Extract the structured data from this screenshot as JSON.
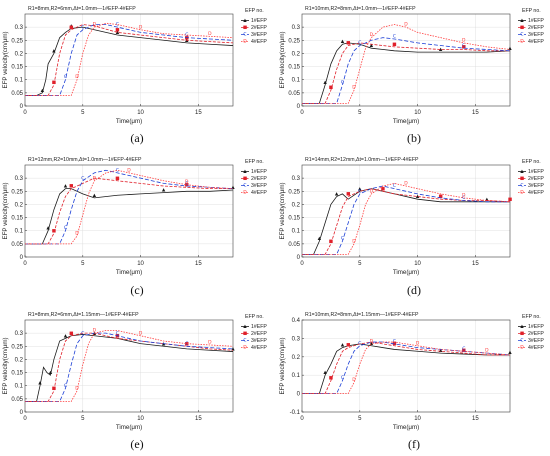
{
  "figure": {
    "legend_header": "EFP no."
  },
  "series_style": [
    {
      "name": "1#EFP",
      "color": "#1a1a1a",
      "dash": "",
      "marker": "▲"
    },
    {
      "name": "2#EFP",
      "color": "#e0202a",
      "dash": "3,1.5",
      "marker": "■"
    },
    {
      "name": "3#EFP",
      "color": "#1c3fd6",
      "dash": "4,2",
      "marker": "C"
    },
    {
      "name": "4#EFP",
      "color": "#ff3b3b",
      "dash": "1.5,1.2",
      "marker": "D"
    }
  ],
  "chart_data": [
    {
      "id": "a",
      "caption": "(a)",
      "type": "line",
      "title": "R1=8mm,R2=6mm,Δt=1.0mm—1#EFP-4#EFP",
      "xlabel": "Time(μm)",
      "ylabel": "EFP velocity(cm/μm)",
      "xlim": [
        0,
        18
      ],
      "ylim": [
        0,
        0.35
      ],
      "xticks": [
        0,
        5,
        10,
        15
      ],
      "yticks": [
        0,
        0.05,
        0.1,
        0.15,
        0.2,
        0.25,
        0.3
      ],
      "legend_position": "right",
      "grid": true,
      "series": [
        {
          "name": "1#EFP",
          "x": [
            0,
            1,
            1.5,
            1.8,
            2,
            2.5,
            3,
            3.5,
            4,
            5,
            6,
            8,
            10,
            12,
            14,
            16,
            18
          ],
          "y": [
            0.04,
            0.04,
            0.05,
            0.1,
            0.16,
            0.2,
            0.26,
            0.28,
            0.295,
            0.3,
            0.29,
            0.27,
            0.26,
            0.25,
            0.24,
            0.235,
            0.23
          ]
        },
        {
          "name": "2#EFP",
          "x": [
            0,
            2,
            2.5,
            3,
            3.5,
            4,
            5,
            6,
            8,
            10,
            12,
            14,
            16,
            18
          ],
          "y": [
            0.04,
            0.04,
            0.08,
            0.2,
            0.27,
            0.29,
            0.31,
            0.305,
            0.28,
            0.27,
            0.26,
            0.25,
            0.245,
            0.24
          ]
        },
        {
          "name": "3#EFP",
          "x": [
            0,
            3,
            3.5,
            4,
            4.5,
            5,
            6,
            7,
            8,
            10,
            12,
            14,
            16,
            18
          ],
          "y": [
            0.04,
            0.04,
            0.1,
            0.2,
            0.27,
            0.29,
            0.31,
            0.31,
            0.3,
            0.28,
            0.27,
            0.26,
            0.255,
            0.25
          ]
        },
        {
          "name": "4#EFP",
          "x": [
            0,
            4,
            4.5,
            5,
            5.5,
            6,
            7,
            8,
            10,
            12,
            14,
            16,
            18
          ],
          "y": [
            0.04,
            0.04,
            0.1,
            0.2,
            0.27,
            0.3,
            0.315,
            0.31,
            0.29,
            0.275,
            0.27,
            0.265,
            0.26
          ]
        }
      ]
    },
    {
      "id": "b",
      "caption": "(b)",
      "type": "line",
      "title": "R1=10mm,R2=8mm,Δt=1.0mm—1#EFP-4#EFP",
      "xlabel": "Time(μm)",
      "ylabel": "EFP velocity(cm/μm)",
      "xlim": [
        0,
        18
      ],
      "ylim": [
        0,
        0.35
      ],
      "xticks": [
        0,
        5,
        10,
        15
      ],
      "yticks": [
        0,
        0.05,
        0.1,
        0.15,
        0.2,
        0.25,
        0.3
      ],
      "legend_position": "right",
      "grid": true,
      "series": [
        {
          "name": "1#EFP",
          "x": [
            0,
            1.5,
            2,
            2.5,
            3,
            3.5,
            4,
            5,
            6,
            8,
            10,
            12,
            14,
            16,
            18
          ],
          "y": [
            0.01,
            0.01,
            0.08,
            0.16,
            0.21,
            0.235,
            0.24,
            0.235,
            0.22,
            0.21,
            0.205,
            0.205,
            0.205,
            0.205,
            0.21
          ]
        },
        {
          "name": "2#EFP",
          "x": [
            0,
            2,
            2.5,
            3,
            3.5,
            4,
            5,
            6,
            8,
            10,
            12,
            14,
            16,
            18
          ],
          "y": [
            0.01,
            0.01,
            0.06,
            0.14,
            0.2,
            0.23,
            0.24,
            0.235,
            0.225,
            0.22,
            0.215,
            0.215,
            0.21,
            0.21
          ]
        },
        {
          "name": "3#EFP",
          "x": [
            0,
            3,
            3.5,
            4,
            4.5,
            5,
            6,
            7,
            8,
            10,
            12,
            14,
            16,
            18
          ],
          "y": [
            0.01,
            0.01,
            0.08,
            0.16,
            0.21,
            0.23,
            0.25,
            0.26,
            0.255,
            0.24,
            0.23,
            0.22,
            0.215,
            0.21
          ]
        },
        {
          "name": "4#EFP",
          "x": [
            0,
            4,
            4.5,
            5,
            5.5,
            6,
            7,
            8,
            9,
            10,
            12,
            14,
            16,
            18
          ],
          "y": [
            0.01,
            0.01,
            0.06,
            0.14,
            0.22,
            0.26,
            0.3,
            0.31,
            0.3,
            0.28,
            0.26,
            0.24,
            0.225,
            0.215
          ]
        }
      ]
    },
    {
      "id": "c",
      "caption": "(c)",
      "type": "line",
      "title": "R1=12mm,R2=10mm,Δt=1.0mm—1#EFP-4#EFP",
      "xlabel": "Time(μm)",
      "ylabel": "EFP velocity(cm/μm)",
      "xlim": [
        0,
        18
      ],
      "ylim": [
        0,
        0.35
      ],
      "xticks": [
        0,
        5,
        10,
        15
      ],
      "yticks": [
        0,
        0.05,
        0.1,
        0.15,
        0.2,
        0.25,
        0.3
      ],
      "legend_position": "right",
      "grid": true,
      "series": [
        {
          "name": "1#EFP",
          "x": [
            0,
            1.5,
            2,
            2.5,
            3,
            3.5,
            4,
            5,
            6,
            8,
            10,
            12,
            14,
            16,
            18
          ],
          "y": [
            0.05,
            0.05,
            0.1,
            0.18,
            0.24,
            0.26,
            0.26,
            0.24,
            0.225,
            0.235,
            0.24,
            0.245,
            0.25,
            0.25,
            0.255
          ]
        },
        {
          "name": "2#EFP",
          "x": [
            0,
            2,
            2.5,
            3,
            3.5,
            4,
            5,
            6,
            8,
            10,
            12,
            14,
            16,
            18
          ],
          "y": [
            0.05,
            0.05,
            0.09,
            0.17,
            0.23,
            0.26,
            0.28,
            0.3,
            0.29,
            0.28,
            0.27,
            0.265,
            0.26,
            0.26
          ]
        },
        {
          "name": "3#EFP",
          "x": [
            0,
            3,
            3.5,
            4,
            4.5,
            5,
            6,
            7,
            8,
            10,
            12,
            14,
            16,
            18
          ],
          "y": [
            0.05,
            0.05,
            0.1,
            0.18,
            0.25,
            0.29,
            0.32,
            0.33,
            0.32,
            0.3,
            0.28,
            0.27,
            0.265,
            0.26
          ]
        },
        {
          "name": "4#EFP",
          "x": [
            0,
            4,
            4.5,
            5,
            5.5,
            6,
            7,
            8,
            9,
            10,
            12,
            14,
            16,
            18
          ],
          "y": [
            0.05,
            0.05,
            0.08,
            0.16,
            0.24,
            0.29,
            0.32,
            0.33,
            0.32,
            0.31,
            0.29,
            0.275,
            0.265,
            0.26
          ]
        }
      ]
    },
    {
      "id": "d",
      "caption": "(d)",
      "type": "line",
      "title": "R1=14mm,R2=12mm,Δt=1.0mm—1#EFP-4#EFP",
      "xlabel": "Time(μm)",
      "ylabel": "EFP velocity(cm/μm)",
      "xlim": [
        0,
        18
      ],
      "ylim": [
        0,
        0.35
      ],
      "xticks": [
        0,
        5,
        10,
        15
      ],
      "yticks": [
        0,
        0.05,
        0.1,
        0.15,
        0.2,
        0.25,
        0.3
      ],
      "legend_position": "right",
      "grid": true,
      "series": [
        {
          "name": "1#EFP",
          "x": [
            0,
            1,
            1.5,
            2,
            2.5,
            3,
            3.5,
            4,
            5,
            6,
            8,
            10,
            12,
            14,
            16,
            18
          ],
          "y": [
            0.01,
            0.01,
            0.06,
            0.13,
            0.2,
            0.23,
            0.24,
            0.22,
            0.25,
            0.26,
            0.24,
            0.22,
            0.21,
            0.21,
            0.21,
            0.21
          ]
        },
        {
          "name": "2#EFP",
          "x": [
            0,
            2,
            2.5,
            3,
            3.5,
            4,
            5,
            6,
            7,
            8,
            10,
            12,
            14,
            16,
            18
          ],
          "y": [
            0.01,
            0.01,
            0.05,
            0.12,
            0.19,
            0.23,
            0.25,
            0.26,
            0.25,
            0.24,
            0.23,
            0.22,
            0.215,
            0.215,
            0.21
          ]
        },
        {
          "name": "3#EFP",
          "x": [
            0,
            3,
            3.5,
            4,
            4.5,
            5,
            6,
            7,
            8,
            10,
            12,
            14,
            16,
            18
          ],
          "y": [
            0.01,
            0.01,
            0.06,
            0.13,
            0.2,
            0.24,
            0.26,
            0.27,
            0.26,
            0.24,
            0.225,
            0.215,
            0.21,
            0.21
          ]
        },
        {
          "name": "4#EFP",
          "x": [
            0,
            4,
            4.5,
            5,
            5.5,
            6,
            7,
            8,
            9,
            10,
            12,
            14,
            16,
            18
          ],
          "y": [
            0.01,
            0.01,
            0.05,
            0.12,
            0.2,
            0.24,
            0.27,
            0.28,
            0.27,
            0.26,
            0.24,
            0.225,
            0.215,
            0.21
          ]
        }
      ]
    },
    {
      "id": "e",
      "caption": "(e)",
      "type": "line",
      "title": "R1=8mm,R2=6mm,Δt=1.15mm—1#EFP-4#EFP",
      "xlabel": "Time(μm)",
      "ylabel": "EFP velocity(cm/μm)",
      "xlim": [
        0,
        18
      ],
      "ylim": [
        0,
        0.35
      ],
      "xticks": [
        0,
        5,
        10,
        15
      ],
      "yticks": [
        0,
        0.05,
        0.1,
        0.15,
        0.2,
        0.25,
        0.3
      ],
      "legend_position": "right",
      "grid": true,
      "series": [
        {
          "name": "1#EFP",
          "x": [
            0,
            1,
            1.3,
            1.6,
            1.9,
            2.2,
            2.5,
            3,
            3.5,
            4,
            5,
            6,
            8,
            10,
            12,
            14,
            16,
            18
          ],
          "y": [
            0.04,
            0.04,
            0.1,
            0.17,
            0.15,
            0.14,
            0.2,
            0.27,
            0.28,
            0.29,
            0.295,
            0.29,
            0.28,
            0.26,
            0.25,
            0.24,
            0.235,
            0.23
          ]
        },
        {
          "name": "2#EFP",
          "x": [
            0,
            2,
            2.5,
            3,
            3.5,
            4,
            5,
            6,
            8,
            10,
            12,
            14,
            16,
            18
          ],
          "y": [
            0.04,
            0.04,
            0.08,
            0.2,
            0.27,
            0.29,
            0.3,
            0.3,
            0.28,
            0.27,
            0.26,
            0.25,
            0.24,
            0.235
          ]
        },
        {
          "name": "3#EFP",
          "x": [
            0,
            3,
            3.5,
            4,
            4.5,
            5,
            6,
            7,
            8,
            10,
            12,
            14,
            16,
            18
          ],
          "y": [
            0.04,
            0.04,
            0.09,
            0.18,
            0.26,
            0.29,
            0.3,
            0.3,
            0.29,
            0.27,
            0.26,
            0.25,
            0.245,
            0.24
          ]
        },
        {
          "name": "4#EFP",
          "x": [
            0,
            4,
            4.5,
            5,
            5.5,
            6,
            7,
            8,
            10,
            12,
            14,
            16,
            18
          ],
          "y": [
            0.04,
            0.04,
            0.08,
            0.18,
            0.26,
            0.3,
            0.31,
            0.31,
            0.29,
            0.27,
            0.26,
            0.255,
            0.25
          ]
        }
      ]
    },
    {
      "id": "f",
      "caption": "(f)",
      "type": "line",
      "title": "R1=10mm,R2=8mm,Δt=1.15mm—1#EFP-4#EFP",
      "xlabel": "Time(μm)",
      "ylabel": "EFP velocity(cm/μm)",
      "xlim": [
        0,
        18
      ],
      "ylim": [
        -0.1,
        0.4
      ],
      "xticks": [
        0,
        5,
        10,
        15
      ],
      "yticks": [
        -0.1,
        0,
        0.1,
        0.2,
        0.3,
        0.4
      ],
      "legend_position": "right",
      "grid": true,
      "series": [
        {
          "name": "1#EFP",
          "x": [
            0,
            1.5,
            2,
            2.5,
            3,
            3.5,
            4,
            5,
            6,
            8,
            10,
            12,
            14,
            16,
            18
          ],
          "y": [
            0.0,
            0.0,
            0.1,
            0.16,
            0.23,
            0.25,
            0.26,
            0.27,
            0.26,
            0.24,
            0.23,
            0.22,
            0.215,
            0.21,
            0.21
          ]
        },
        {
          "name": "2#EFP",
          "x": [
            0,
            2,
            2.5,
            3,
            3.5,
            4,
            5,
            6,
            8,
            10,
            12,
            14,
            16,
            18
          ],
          "y": [
            0.0,
            0.0,
            0.07,
            0.16,
            0.23,
            0.25,
            0.27,
            0.28,
            0.26,
            0.24,
            0.23,
            0.22,
            0.21,
            0.21
          ]
        },
        {
          "name": "3#EFP",
          "x": [
            0,
            3,
            3.5,
            4,
            4.5,
            5,
            6,
            7,
            8,
            10,
            12,
            14,
            16,
            18
          ],
          "y": [
            0.0,
            0.0,
            0.07,
            0.16,
            0.23,
            0.26,
            0.28,
            0.28,
            0.27,
            0.25,
            0.24,
            0.23,
            0.22,
            0.21
          ]
        },
        {
          "name": "4#EFP",
          "x": [
            0,
            4,
            4.5,
            5,
            5.5,
            6,
            7,
            8,
            10,
            12,
            14,
            16,
            18
          ],
          "y": [
            0.0,
            0.0,
            0.06,
            0.16,
            0.24,
            0.27,
            0.28,
            0.28,
            0.26,
            0.24,
            0.23,
            0.22,
            0.21
          ]
        }
      ]
    }
  ]
}
